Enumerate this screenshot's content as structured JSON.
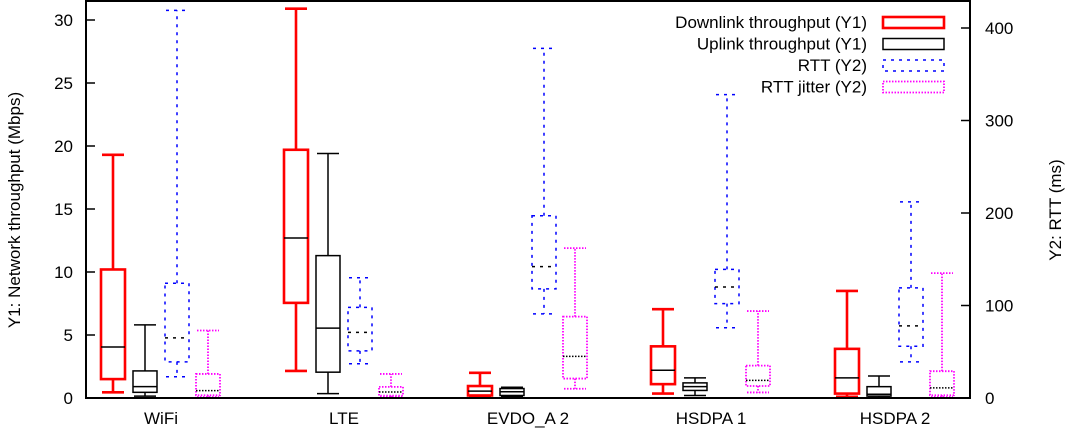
{
  "chart_data": {
    "type": "boxplot",
    "title": "",
    "xlabel": "",
    "ylabel": "Y1: Network throughput (Mbps)",
    "y2label": "Y2: RTT (ms)",
    "ylim": [
      0,
      31.5
    ],
    "y2lim": [
      0,
      429
    ],
    "yticks": [
      0,
      5,
      10,
      15,
      20,
      25,
      30
    ],
    "y2ticks": [
      0,
      100,
      200,
      300,
      400
    ],
    "grid": false,
    "legend_position": "top-right",
    "categories": [
      "WiFi",
      "LTE",
      "EVDO_A 2",
      "HSDPA 1",
      "HSDPA 2"
    ],
    "series": [
      {
        "name": "Downlink throughput (Y1)",
        "axis": "y1",
        "color": "#ff0000",
        "style": "solid-thick",
        "boxes": [
          {
            "min": 0.45,
            "q1": 1.5,
            "median": 4.05,
            "q3": 10.2,
            "max": 19.3
          },
          {
            "min": 2.15,
            "q1": 7.55,
            "median": 12.7,
            "q3": 19.7,
            "max": 30.9
          },
          {
            "min": 0.1,
            "q1": 0.2,
            "median": 0.55,
            "q3": 0.95,
            "max": 2.0
          },
          {
            "min": 0.35,
            "q1": 1.1,
            "median": 2.2,
            "q3": 4.1,
            "max": 7.05
          },
          {
            "min": 0.1,
            "q1": 0.35,
            "median": 1.6,
            "q3": 3.9,
            "max": 8.5
          }
        ]
      },
      {
        "name": "Uplink throughput (Y1)",
        "axis": "y1",
        "color": "#000000",
        "style": "solid",
        "boxes": [
          {
            "min": 0.15,
            "q1": 0.45,
            "median": 0.9,
            "q3": 2.15,
            "max": 5.8
          },
          {
            "min": 0.35,
            "q1": 2.05,
            "median": 5.55,
            "q3": 11.3,
            "max": 19.4
          },
          {
            "min": 0.1,
            "q1": 0.2,
            "median": 0.5,
            "q3": 0.75,
            "max": 0.85
          },
          {
            "min": 0.2,
            "q1": 0.6,
            "median": 0.9,
            "q3": 1.2,
            "max": 1.6
          },
          {
            "min": 0.05,
            "q1": 0.15,
            "median": 0.3,
            "q3": 0.9,
            "max": 1.75
          }
        ]
      },
      {
        "name": "RTT (Y2)",
        "axis": "y2",
        "color": "#0000ff",
        "style": "dashed",
        "boxes": [
          {
            "min": 23,
            "q1": 39,
            "median": 65,
            "q3": 124,
            "max": 419
          },
          {
            "min": 37,
            "q1": 51,
            "median": 71,
            "q3": 98,
            "max": 130
          },
          {
            "min": 91,
            "q1": 118,
            "median": 142,
            "q3": 197,
            "max": 378
          },
          {
            "min": 76,
            "q1": 102,
            "median": 120,
            "q3": 139,
            "max": 328
          },
          {
            "min": 39,
            "q1": 56,
            "median": 78,
            "q3": 119,
            "max": 212
          }
        ]
      },
      {
        "name": "RTT jitter (Y2)",
        "axis": "y2",
        "color": "#ff00ff",
        "style": "dotted",
        "boxes": [
          {
            "min": 1,
            "q1": 3,
            "median": 8,
            "q3": 26,
            "max": 73
          },
          {
            "min": 1,
            "q1": 2.5,
            "median": 6.5,
            "q3": 12,
            "max": 26
          },
          {
            "min": 10,
            "q1": 21,
            "median": 45,
            "q3": 88,
            "max": 162
          },
          {
            "min": 6,
            "q1": 13,
            "median": 19,
            "q3": 35,
            "max": 94
          },
          {
            "min": 1,
            "q1": 3,
            "median": 11,
            "q3": 29,
            "max": 135
          }
        ]
      }
    ]
  }
}
